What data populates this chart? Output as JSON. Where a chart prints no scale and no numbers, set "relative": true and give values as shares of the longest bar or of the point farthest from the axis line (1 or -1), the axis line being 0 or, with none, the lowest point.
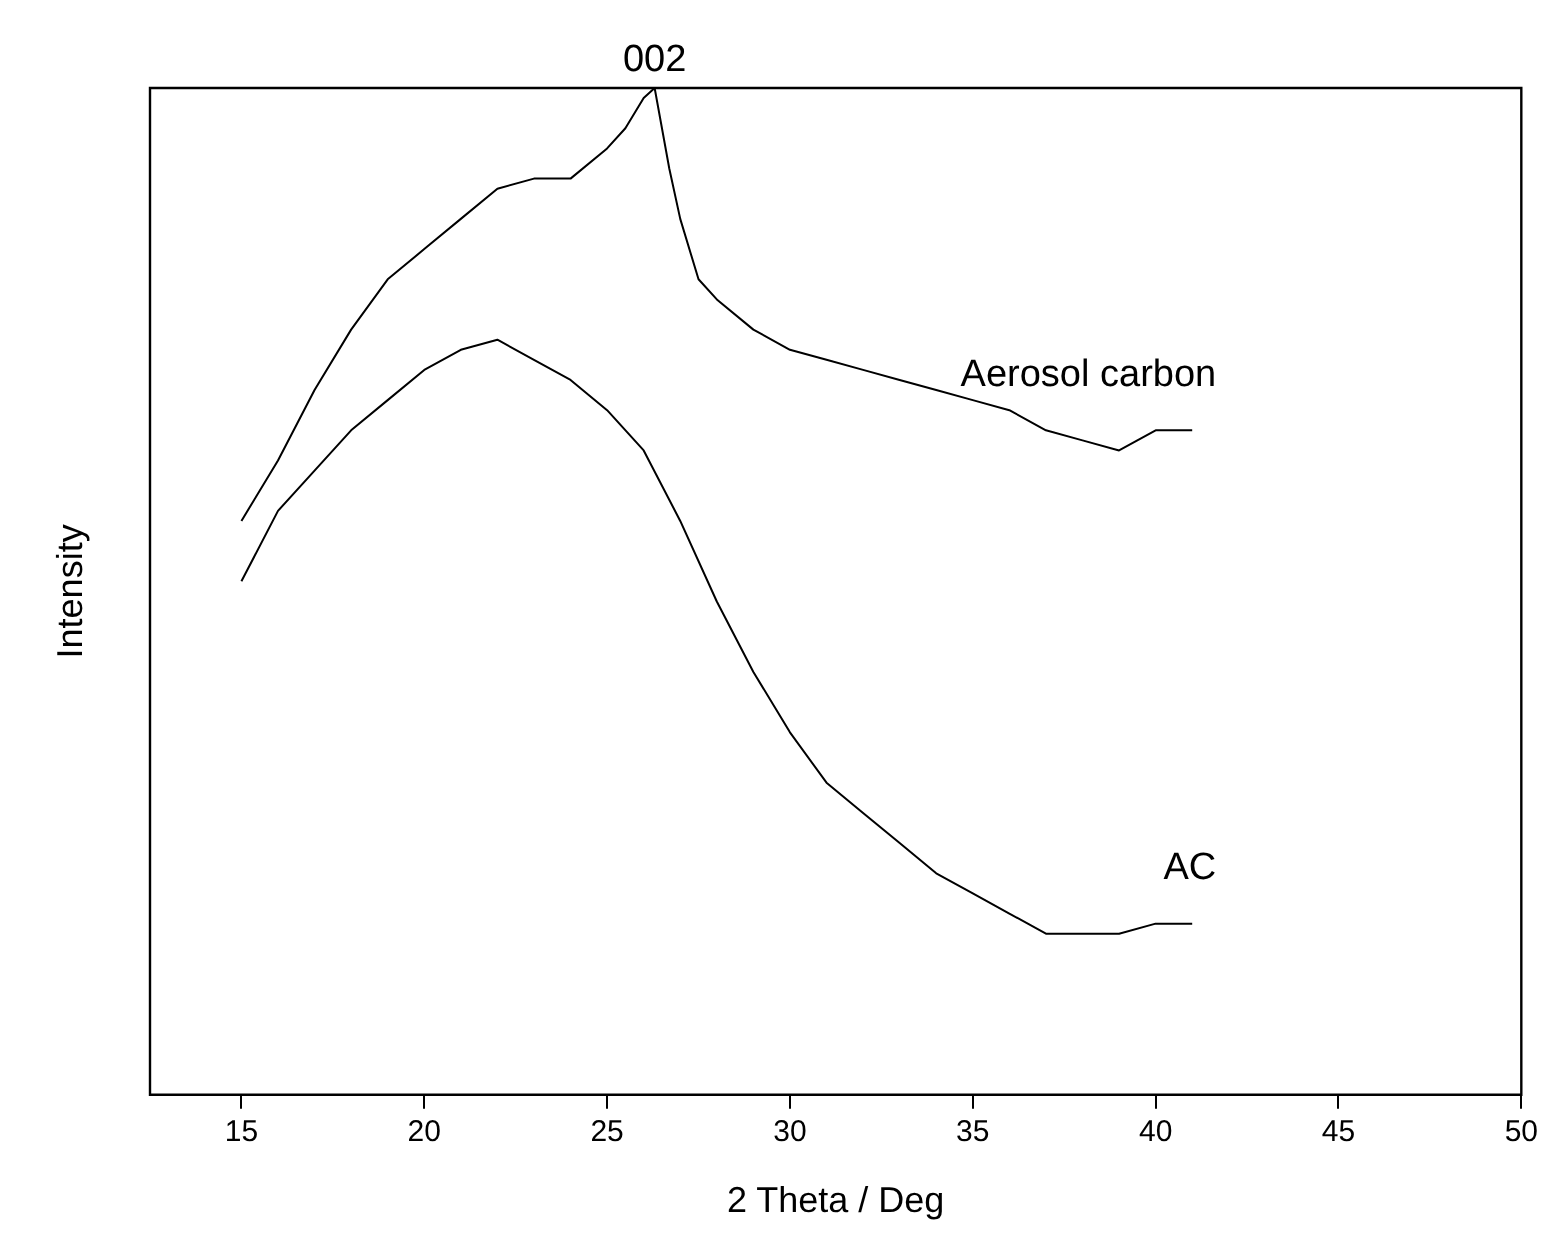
{
  "chart_data": {
    "type": "line",
    "xlabel": "2 Theta / Deg",
    "ylabel": "Intensity",
    "relative": true,
    "xlim": [
      12.5,
      50
    ],
    "xticks": [
      15,
      20,
      25,
      30,
      35,
      40,
      45,
      50
    ],
    "grid": false,
    "legend": false,
    "marker": "none",
    "line_style": "solid",
    "series": [
      {
        "name": "Aerosol carbon",
        "color": "#000000",
        "x": [
          15,
          16,
          17,
          18,
          19,
          20,
          21,
          22,
          23,
          24,
          25,
          25.5,
          26,
          26.3,
          26.7,
          27,
          27.5,
          28,
          29,
          30,
          31,
          32,
          33,
          34,
          35,
          36,
          37,
          38,
          39,
          40,
          41
        ],
        "values": [
          0.57,
          0.63,
          0.7,
          0.76,
          0.81,
          0.84,
          0.87,
          0.9,
          0.91,
          0.91,
          0.94,
          0.96,
          0.99,
          1,
          0.92,
          0.87,
          0.81,
          0.79,
          0.76,
          0.74,
          0.73,
          0.72,
          0.71,
          0.7,
          0.69,
          0.68,
          0.66,
          0.65,
          0.64,
          0.66,
          0.66
        ]
      },
      {
        "name": "AC",
        "color": "#000000",
        "x": [
          15,
          16,
          17,
          18,
          19,
          20,
          21,
          22,
          23,
          24,
          25,
          26,
          27,
          28,
          29,
          30,
          31,
          32,
          33,
          34,
          35,
          36,
          37,
          38,
          39,
          40,
          41
        ],
        "values": [
          0.51,
          0.58,
          0.62,
          0.66,
          0.69,
          0.72,
          0.74,
          0.75,
          0.73,
          0.71,
          0.68,
          0.64,
          0.57,
          0.49,
          0.42,
          0.36,
          0.31,
          0.28,
          0.25,
          0.22,
          0.2,
          0.18,
          0.16,
          0.16,
          0.16,
          0.17,
          0.17
        ]
      }
    ],
    "annotations": [
      {
        "text": "002",
        "x": 26.3,
        "y": 1
      }
    ]
  }
}
